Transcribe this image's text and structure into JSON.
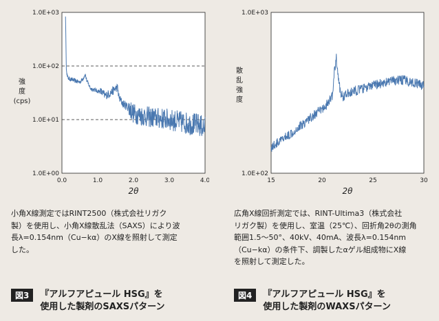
{
  "chart_data": [
    {
      "type": "line",
      "ylabel_lines": [
        "強",
        "度",
        "(cps)"
      ],
      "xlabel": "2θ",
      "yscale": "log",
      "ylim": [
        1,
        1000
      ],
      "yticks": [
        "1.0E+00",
        "1.0E+01",
        "1.0E+02",
        "1.0E+03"
      ],
      "xlim": [
        0,
        4
      ],
      "xticks": [
        "0.0",
        "1.0",
        "2.0",
        "3.0",
        "4.0"
      ],
      "grid": "dashed at 1.0E+01 and 1.0E+02",
      "color": "#4a78b0",
      "x": [
        0.1,
        0.12,
        0.15,
        0.2,
        0.3,
        0.4,
        0.5,
        0.55,
        0.6,
        0.65,
        0.7,
        0.75,
        0.8,
        0.9,
        1.0,
        1.1,
        1.2,
        1.3,
        1.4,
        1.5,
        1.55,
        1.6,
        1.7,
        1.8,
        1.9,
        2.0,
        2.2,
        2.5,
        3.0,
        3.5,
        3.8,
        4.0
      ],
      "y": [
        900,
        100,
        62,
        58,
        55,
        52,
        50,
        54,
        60,
        70,
        52,
        45,
        38,
        36,
        34,
        33,
        28,
        30,
        33,
        38,
        40,
        25,
        20,
        18,
        16,
        13,
        12,
        11,
        10,
        8.5,
        8,
        7
      ]
    },
    {
      "type": "line",
      "ylabel_lines": [
        "散",
        "乱",
        "強",
        "度"
      ],
      "xlabel": "2θ",
      "yscale": "log",
      "ylim": [
        100,
        1000
      ],
      "yticks": [
        "1.0E+02",
        "1.0E+03"
      ],
      "xlim": [
        15,
        30
      ],
      "xticks": [
        "15",
        "20",
        "25",
        "30"
      ],
      "color": "#4a78b0",
      "x": [
        15,
        16,
        17,
        18,
        19,
        20,
        20.5,
        21,
        21.2,
        21.4,
        21.6,
        21.8,
        22,
        22.5,
        23,
        24,
        25,
        26,
        27,
        28,
        29,
        30
      ],
      "y": [
        145,
        160,
        178,
        200,
        225,
        250,
        268,
        300,
        420,
        520,
        390,
        320,
        300,
        310,
        320,
        335,
        350,
        365,
        375,
        380,
        365,
        350
      ]
    }
  ],
  "desc_left": "小角X線測定ではRINT2500（株式会社リガク\n製）を使用し、小角X線散乱法（SAXS）により波\n長λ=0.154nm（Cu−kα）のX線を照射して測定\nした。",
  "desc_right": "広角X線回折測定では、RINT-Ultima3（株式会社\nリガク製）を使用し、室温（25℃）、回折角2θの測角\n範囲1.5〜50°、40kV、40mA、波長λ=0.154nm\n（Cu−kα）の条件下、調製したαゲル組成物にX線\nを照射して測定した。",
  "caption_left": {
    "label": "図3",
    "text": "『アルフアピュール HSG』を\n使用した製剤のSAXSパターン"
  },
  "caption_right": {
    "label": "図4",
    "text": "『アルフアピュール HSG』を\n使用した製剤のWAXSパターン"
  }
}
